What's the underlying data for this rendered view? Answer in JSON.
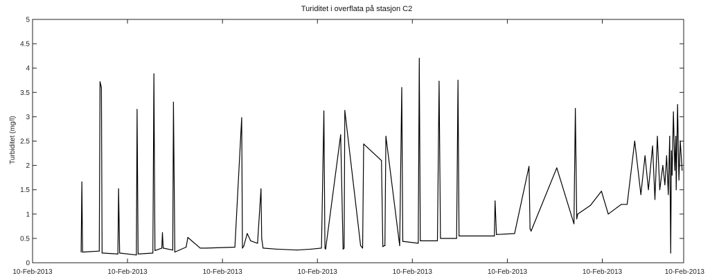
{
  "chart_data": {
    "type": "line",
    "title": "Turiditet i overflata på stasjon C2",
    "ylabel": "Turbiditet (mg/l)",
    "xlabel": "",
    "ylim": [
      0,
      5
    ],
    "yticks": [
      0,
      0.5,
      1,
      1.5,
      2,
      2.5,
      3,
      3.5,
      4,
      4.5,
      5
    ],
    "ytick_labels": [
      "0",
      "0.5",
      "1",
      "1.5",
      "2",
      "2.5",
      "3",
      "3.5",
      "4",
      "4.5",
      "5"
    ],
    "xlim": [
      0,
      1
    ],
    "xticks": [
      0,
      0.1458,
      0.2917,
      0.4375,
      0.5833,
      0.7292,
      0.875,
      1.0
    ],
    "xtick_labels": [
      "10-Feb-2013",
      "10-Feb-2013",
      "10-Feb-2013",
      "10-Feb-2013",
      "10-Feb-2013",
      "10-Feb-2013",
      "10-Feb-2013",
      "10-Feb-2013"
    ],
    "grid": false,
    "series": [
      {
        "color": "#000000",
        "x": [
          0.0746,
          0.0757,
          0.0768,
          0.1025,
          0.1036,
          0.1057,
          0.1068,
          0.1083,
          0.1311,
          0.1321,
          0.1337,
          0.1595,
          0.1605,
          0.1621,
          0.1848,
          0.1864,
          0.188,
          0.1985,
          0.1995,
          0.2006,
          0.2153,
          0.2164,
          0.2185,
          0.2359,
          0.2385,
          0.2575,
          0.267,
          0.3107,
          0.3212,
          0.3223,
          0.3244,
          0.3297,
          0.335,
          0.3455,
          0.3508,
          0.3519,
          0.354,
          0.3741,
          0.4062,
          0.4284,
          0.4437,
          0.4474,
          0.449,
          0.4501,
          0.4732,
          0.4769,
          0.4785,
          0.4796,
          0.5038,
          0.5069,
          0.5085,
          0.5359,
          0.538,
          0.5401,
          0.5412,
          0.5427,
          0.5638,
          0.567,
          0.5686,
          0.5923,
          0.5939,
          0.5955,
          0.6218,
          0.6244,
          0.6265,
          0.6513,
          0.6534,
          0.655,
          0.7093,
          0.7103,
          0.7124,
          0.7403,
          0.7624,
          0.764,
          0.7656,
          0.8051,
          0.8315,
          0.8336,
          0.8357,
          0.8373,
          0.8568,
          0.8737,
          0.8842,
          0.9042,
          0.9132,
          0.9248,
          0.9343,
          0.9406,
          0.9459,
          0.9522,
          0.9559,
          0.9596,
          0.9633,
          0.968,
          0.9712,
          0.9738,
          0.9764,
          0.9785,
          0.9801,
          0.9812,
          0.9822,
          0.9843,
          0.9864,
          0.988,
          0.9885,
          0.9906,
          0.9927,
          0.9948,
          0.9975
        ],
        "y": [
          0.22,
          1.66,
          0.22,
          0.24,
          3.72,
          3.6,
          0.2,
          0.2,
          0.18,
          1.52,
          0.2,
          0.16,
          3.15,
          0.18,
          0.2,
          3.88,
          0.25,
          0.3,
          0.62,
          0.3,
          0.26,
          3.3,
          0.22,
          0.32,
          0.52,
          0.3,
          0.3,
          0.32,
          2.98,
          0.3,
          0.34,
          0.6,
          0.45,
          0.4,
          1.52,
          0.5,
          0.3,
          0.28,
          0.26,
          0.28,
          0.3,
          3.12,
          0.3,
          0.28,
          2.63,
          0.28,
          0.3,
          3.13,
          0.35,
          0.3,
          2.44,
          2.1,
          0.33,
          0.35,
          0.35,
          2.6,
          0.35,
          3.6,
          0.44,
          0.4,
          4.2,
          0.45,
          0.45,
          3.73,
          0.5,
          0.5,
          3.75,
          0.55,
          0.55,
          1.27,
          0.58,
          0.6,
          1.98,
          0.7,
          0.65,
          1.95,
          0.8,
          3.17,
          0.9,
          1.0,
          1.18,
          1.47,
          1.0,
          1.2,
          1.2,
          2.5,
          1.4,
          2.2,
          1.5,
          2.4,
          1.3,
          2.6,
          1.5,
          2.0,
          1.6,
          2.2,
          1.4,
          2.6,
          0.2,
          2.3,
          1.8,
          3.1,
          1.9,
          2.6,
          1.5,
          3.25,
          1.7,
          2.5,
          1.9
        ]
      }
    ]
  }
}
